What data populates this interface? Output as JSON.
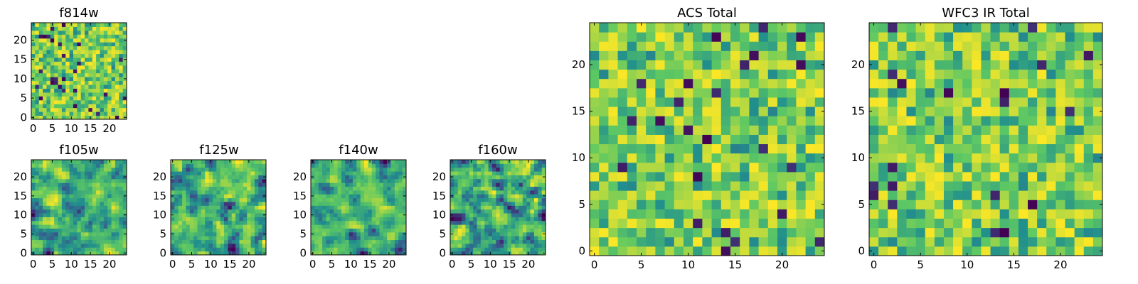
{
  "figure": {
    "colormap": "viridis",
    "colors": [
      "#440154",
      "#3b528b",
      "#21908d",
      "#5dc863",
      "#fde725"
    ],
    "background": "#ffffff"
  },
  "chart_data": [
    {
      "id": "f814w",
      "type": "heatmap",
      "title": "f814w",
      "grid_size": 25,
      "seed": 11,
      "xlim": [
        0,
        25
      ],
      "ylim": [
        0,
        25
      ],
      "xticks": [
        0,
        5,
        10,
        15,
        20
      ],
      "yticks": [
        0,
        5,
        10,
        15,
        20
      ],
      "smooth": false
    },
    {
      "id": "f105w",
      "type": "heatmap",
      "title": "f105w",
      "grid_size": 25,
      "seed": 23,
      "xlim": [
        0,
        25
      ],
      "ylim": [
        0,
        25
      ],
      "xticks": [
        0,
        5,
        10,
        15,
        20
      ],
      "yticks": [
        0,
        5,
        10,
        15,
        20
      ],
      "smooth": true
    },
    {
      "id": "f125w",
      "type": "heatmap",
      "title": "f125w",
      "grid_size": 25,
      "seed": 37,
      "xlim": [
        0,
        25
      ],
      "ylim": [
        0,
        25
      ],
      "xticks": [
        0,
        5,
        10,
        15,
        20
      ],
      "yticks": [
        0,
        5,
        10,
        15,
        20
      ],
      "smooth": true
    },
    {
      "id": "f140w",
      "type": "heatmap",
      "title": "f140w",
      "grid_size": 25,
      "seed": 41,
      "xlim": [
        0,
        25
      ],
      "ylim": [
        0,
        25
      ],
      "xticks": [
        0,
        5,
        10,
        15,
        20
      ],
      "yticks": [
        0,
        5,
        10,
        15,
        20
      ],
      "smooth": true
    },
    {
      "id": "f160w",
      "type": "heatmap",
      "title": "f160w",
      "grid_size": 25,
      "seed": 53,
      "xlim": [
        0,
        25
      ],
      "ylim": [
        0,
        25
      ],
      "xticks": [
        0,
        5,
        10,
        15,
        20
      ],
      "yticks": [
        0,
        5,
        10,
        15,
        20
      ],
      "smooth": true
    },
    {
      "id": "acs-total",
      "type": "heatmap",
      "title": "ACS Total",
      "grid_size": 25,
      "seed": 67,
      "xlim": [
        0,
        25
      ],
      "ylim": [
        0,
        25
      ],
      "xticks": [
        0,
        5,
        10,
        15,
        20
      ],
      "yticks": [
        0,
        5,
        10,
        15,
        20
      ],
      "smooth": false
    },
    {
      "id": "wfc3-ir-total",
      "type": "heatmap",
      "title": "WFC3 IR Total",
      "grid_size": 25,
      "seed": 79,
      "xlim": [
        0,
        25
      ],
      "ylim": [
        0,
        25
      ],
      "xticks": [
        0,
        5,
        10,
        15,
        20
      ],
      "yticks": [
        0,
        5,
        10,
        15,
        20
      ],
      "smooth": false
    }
  ]
}
